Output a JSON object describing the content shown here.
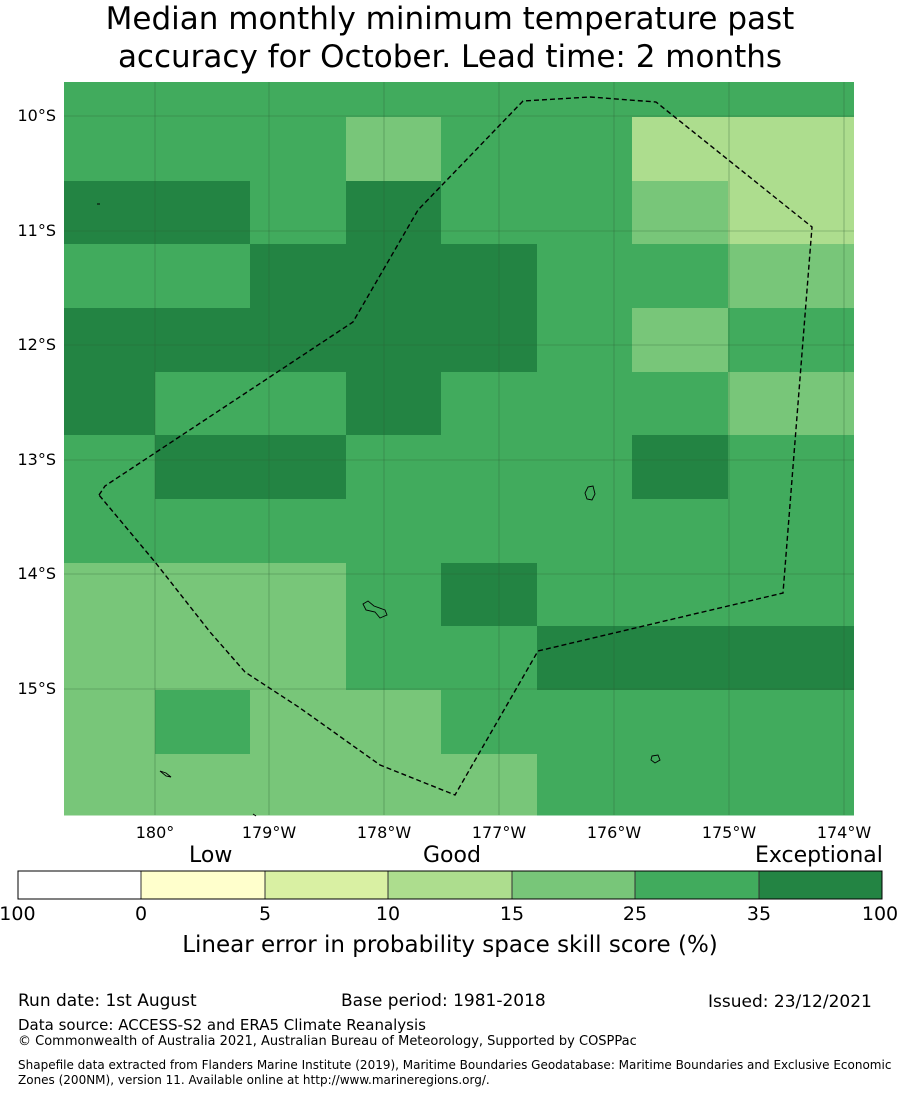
{
  "title": {
    "line1": "Median monthly minimum temperature past",
    "line2": "accuracy for October. Lead time: 2 months"
  },
  "map": {
    "lat_labels": [
      "10°S",
      "11°S",
      "12°S",
      "13°S",
      "14°S",
      "15°S"
    ],
    "lon_labels": [
      "180°",
      "179°W",
      "178°W",
      "177°W",
      "176°W",
      "175°W",
      "174°W"
    ],
    "colors": {
      "c0": "#ffffff",
      "c1": "#ffffcc",
      "c2": "#d9f0a3",
      "c3": "#addd8e",
      "c4": "#78c679",
      "c5": "#41ab5d",
      "c6": "#238443"
    },
    "grid_codes": [
      "55555555",
      "55545533",
      "66565543",
      "55666554",
      "66666545",
      "65565554",
      "56655565",
      "55555555",
      "44456555",
      "44455666",
      "45445555",
      "44444555"
    ]
  },
  "colorbar": {
    "low": "Low",
    "good": "Good",
    "exceptional": "Exceptional",
    "ticks": [
      "-100",
      "0",
      "5",
      "10",
      "15",
      "25",
      "35",
      "100"
    ],
    "title": "Linear error in probability space skill score (%)"
  },
  "footer": {
    "run_date": "Run date: 1st August",
    "base_period": "Base period: 1981-2018",
    "issued": "Issued: 23/12/2021",
    "data_source": "Data source: ACCESS-S2 and ERA5 Climate Reanalysis",
    "copyright": "© Commonwealth of Australia 2021, Australian Bureau of Meteorology, Supported by COSPPac",
    "shapefile_line1": "Shapefile data extracted from Flanders Marine Institute (2019), Maritime Boundaries Geodatabase: Maritime Boundaries and Exclusive Economic",
    "shapefile_line2": "Zones (200NM), version 11. Available online at http://www.marineregions.org/."
  }
}
